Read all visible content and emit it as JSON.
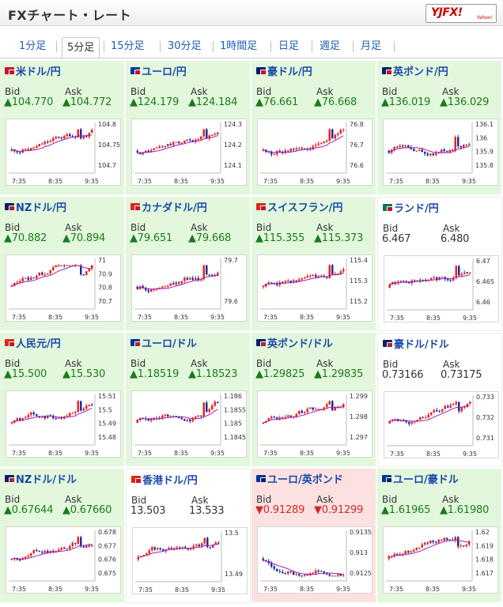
{
  "header": {
    "title": "FXチャート・レート",
    "logo_text": "YJFX!",
    "logo_sub": "Yahoo!"
  },
  "tabs": [
    {
      "label": "1分足",
      "active": false
    },
    {
      "label": "5分足",
      "active": true
    },
    {
      "label": "15分足",
      "active": false
    },
    {
      "label": "30分足",
      "active": false
    },
    {
      "label": "1時間足",
      "active": false
    },
    {
      "label": "日足",
      "active": false
    },
    {
      "label": "週足",
      "active": false
    },
    {
      "label": "月足",
      "active": false
    }
  ],
  "labels": {
    "bid": "Bid",
    "ask": "Ask"
  },
  "colors": {
    "up_bg": "#e2f7dc",
    "down_bg": "#fde0e0",
    "up_text": "#1b7b1b",
    "down_text": "#d12a2a",
    "pair_link": "#1849a9",
    "candle_up": "#e8231e",
    "candle_down": "#1a2e9a",
    "moving_avg": "#a21fb8"
  },
  "pairs": [
    {
      "name": "米ドル/円",
      "flags": [
        "#c8102e",
        "#c8102e"
      ],
      "bid": "▲104.770",
      "ask": "▲104.772",
      "trend": "up",
      "chart_data": {
        "type": "candlestick",
        "x_ticks": [
          "7:35",
          "8:35",
          "9:35"
        ],
        "y_ticks": [
          "104.8",
          "104.75",
          "104.7"
        ]
      }
    },
    {
      "name": "ユーロ/円",
      "flags": [
        "#003399",
        "#c8102e"
      ],
      "bid": "▲124.179",
      "ask": "▲124.184",
      "trend": "up",
      "chart_data": {
        "type": "candlestick",
        "x_ticks": [
          "7:35",
          "8:35",
          "9:35"
        ],
        "y_ticks": [
          "124.3",
          "124.2",
          "124.1"
        ]
      }
    },
    {
      "name": "豪ドル/円",
      "flags": [
        "#012169",
        "#c8102e"
      ],
      "bid": "▲76.661",
      "ask": "▲76.668",
      "trend": "up",
      "chart_data": {
        "type": "candlestick",
        "x_ticks": [
          "7:35",
          "8:35",
          "9:35"
        ],
        "y_ticks": [
          "76.8",
          "76.7",
          "76.6"
        ]
      }
    },
    {
      "name": "英ポンド/円",
      "flags": [
        "#012169",
        "#c8102e"
      ],
      "bid": "▲136.019",
      "ask": "▲136.029",
      "trend": "up",
      "chart_data": {
        "type": "candlestick",
        "x_ticks": [
          "7:35",
          "8:35",
          "9:35"
        ],
        "y_ticks": [
          "136.1",
          "136",
          "135.9",
          "135.8"
        ]
      }
    },
    {
      "name": "NZドル/円",
      "flags": [
        "#012169",
        "#c8102e"
      ],
      "bid": "▲70.882",
      "ask": "▲70.894",
      "trend": "up",
      "chart_data": {
        "type": "candlestick",
        "x_ticks": [
          "7:35",
          "8:35",
          "9:35"
        ],
        "y_ticks": [
          "71",
          "70.9",
          "70.8",
          "70.7"
        ]
      }
    },
    {
      "name": "カナダドル/円",
      "flags": [
        "#d52b1e",
        "#c8102e"
      ],
      "bid": "▲79.651",
      "ask": "▲79.668",
      "trend": "up",
      "chart_data": {
        "type": "candlestick",
        "x_ticks": [
          "7:35",
          "8:35",
          "9:35"
        ],
        "y_ticks": [
          "79.7",
          "79.6"
        ]
      }
    },
    {
      "name": "スイスフラン/円",
      "flags": [
        "#d52b1e",
        "#c8102e"
      ],
      "bid": "▲115.355",
      "ask": "▲115.373",
      "trend": "up",
      "chart_data": {
        "type": "candlestick",
        "x_ticks": [
          "7:35",
          "8:35",
          "9:35"
        ],
        "y_ticks": [
          "115.4",
          "115.3",
          "115.2"
        ]
      }
    },
    {
      "name": "ランド/円",
      "flags": [
        "#007a4d",
        "#c8102e"
      ],
      "bid": "6.467",
      "ask": "6.480",
      "trend": "flat",
      "chart_data": {
        "type": "candlestick",
        "x_ticks": [
          "7:35",
          "8:35",
          "9:35"
        ],
        "y_ticks": [
          "6.47",
          "6.465",
          "6.46"
        ]
      }
    },
    {
      "name": "人民元/円",
      "flags": [
        "#de2910",
        "#c8102e"
      ],
      "bid": "▲15.500",
      "ask": "▲15.530",
      "trend": "up",
      "chart_data": {
        "type": "candlestick",
        "x_ticks": [
          "7:35",
          "8:35",
          "9:35"
        ],
        "y_ticks": [
          "15.51",
          "15.5",
          "15.49",
          "15.48"
        ]
      }
    },
    {
      "name": "ユーロ/ドル",
      "flags": [
        "#003399",
        "#b22234"
      ],
      "bid": "▲1.18519",
      "ask": "▲1.18523",
      "trend": "up",
      "chart_data": {
        "type": "candlestick",
        "x_ticks": [
          "7:35",
          "8:35",
          "9:35"
        ],
        "y_ticks": [
          "1.186",
          "1.1855",
          "1.185",
          "1.1845"
        ]
      }
    },
    {
      "name": "英ポンド/ドル",
      "flags": [
        "#012169",
        "#b22234"
      ],
      "bid": "▲1.29825",
      "ask": "▲1.29835",
      "trend": "up",
      "chart_data": {
        "type": "candlestick",
        "x_ticks": [
          "7:35",
          "8:35",
          "9:35"
        ],
        "y_ticks": [
          "1.299",
          "1.298",
          "1.297"
        ]
      }
    },
    {
      "name": "豪ドル/ドル",
      "flags": [
        "#012169",
        "#b22234"
      ],
      "bid": "0.73166",
      "ask": "0.73175",
      "trend": "flat",
      "chart_data": {
        "type": "candlestick",
        "x_ticks": [
          "7:35",
          "8:35",
          "9:35"
        ],
        "y_ticks": [
          "0.733",
          "0.732",
          "0.731"
        ]
      }
    },
    {
      "name": "NZドル/ドル",
      "flags": [
        "#012169",
        "#b22234"
      ],
      "bid": "▲0.67644",
      "ask": "▲0.67660",
      "trend": "up",
      "chart_data": {
        "type": "candlestick",
        "x_ticks": [
          "7:35",
          "8:35",
          "9:35"
        ],
        "y_ticks": [
          "0.678",
          "0.677",
          "0.676",
          "0.675"
        ]
      }
    },
    {
      "name": "香港ドル/円",
      "flags": [
        "#de2910",
        "#c8102e"
      ],
      "bid": "13.503",
      "ask": "13.533",
      "trend": "flat",
      "chart_data": {
        "type": "candlestick",
        "x_ticks": [
          "7:35",
          "8:35",
          "9:35"
        ],
        "y_ticks": [
          "13.5",
          "13.49"
        ]
      }
    },
    {
      "name": "ユーロ/英ポンド",
      "flags": [
        "#003399",
        "#012169"
      ],
      "bid": "▼0.91289",
      "ask": "▼0.91299",
      "trend": "down",
      "chart_data": {
        "type": "candlestick",
        "x_ticks": [
          "7:35",
          "8:35",
          "9:35"
        ],
        "y_ticks": [
          "0.9135",
          "0.913",
          "0.9125"
        ]
      }
    },
    {
      "name": "ユーロ/豪ドル",
      "flags": [
        "#003399",
        "#012169"
      ],
      "bid": "▲1.61965",
      "ask": "▲1.61980",
      "trend": "up",
      "chart_data": {
        "type": "candlestick",
        "x_ticks": [
          "7:35",
          "8:35",
          "9:35"
        ],
        "y_ticks": [
          "1.62",
          "1.619",
          "1.618",
          "1.617"
        ]
      }
    }
  ]
}
